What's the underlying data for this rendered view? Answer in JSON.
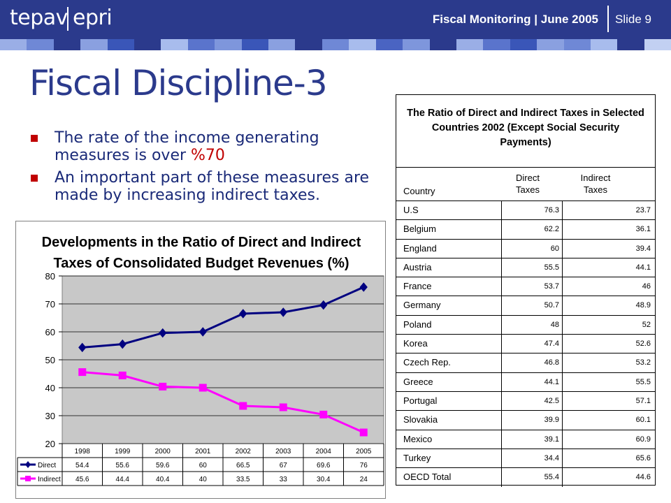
{
  "header": {
    "logo_left": "tepav",
    "logo_right": "epri",
    "title": "Fiscal Monitoring | June 2005",
    "slide_label": "Slide 9",
    "colors": {
      "bar": "#2b3a8c"
    }
  },
  "slide": {
    "title": "Fiscal Discipline-3",
    "bullets": [
      {
        "text": "The rate of the income generating measures is over ",
        "highlight": "%70"
      },
      {
        "text": "An important part of these measures are made by increasing indirect taxes.",
        "highlight": ""
      }
    ]
  },
  "table": {
    "title": "The Ratio of Direct and Indirect Taxes in Selected Countries 2002 (Except Social Security Payments)",
    "headers": {
      "country": "Country",
      "direct_1": "Direct",
      "direct_2": "Taxes",
      "indirect_1": "Indirect",
      "indirect_2": "Taxes"
    },
    "rows": [
      {
        "country": "U.S",
        "direct": "76.3",
        "indirect": "23.7"
      },
      {
        "country": "Belgium",
        "direct": "62.2",
        "indirect": "36.1"
      },
      {
        "country": "England",
        "direct": "60",
        "indirect": "39.4"
      },
      {
        "country": "Austria",
        "direct": "55.5",
        "indirect": "44.1"
      },
      {
        "country": "France",
        "direct": "53.7",
        "indirect": "46"
      },
      {
        "country": "Germany",
        "direct": "50.7",
        "indirect": "48.9"
      },
      {
        "country": "Poland",
        "direct": "48",
        "indirect": "52"
      },
      {
        "country": "Korea",
        "direct": "47.4",
        "indirect": "52.6"
      },
      {
        "country": "Czech Rep.",
        "direct": "46.8",
        "indirect": "53.2"
      },
      {
        "country": "Greece",
        "direct": "44.1",
        "indirect": "55.5"
      },
      {
        "country": "Portugal",
        "direct": "42.5",
        "indirect": "57.1"
      },
      {
        "country": "Slovakia",
        "direct": "39.9",
        "indirect": "60.1"
      },
      {
        "country": "Mexico",
        "direct": "39.1",
        "indirect": "60.9"
      },
      {
        "country": "Turkey",
        "direct": "34.4",
        "indirect": "65.6"
      },
      {
        "country": "OECD Total",
        "direct": "55.4",
        "indirect": "44.6"
      }
    ]
  },
  "chart_data": {
    "type": "line",
    "title": "Developments in the Ratio of Direct and Indirect Taxes of Consolidated Budget Revenues (%)",
    "title_lines": [
      "Developments in the Ratio of Direct and Indirect",
      "Taxes of Consolidated Budget Revenues (%)"
    ],
    "categories": [
      "1998",
      "1999",
      "2000",
      "2001",
      "2002",
      "2003",
      "2004",
      "2005"
    ],
    "series": [
      {
        "name": "Direct",
        "values": [
          54.4,
          55.6,
          59.6,
          60,
          66.5,
          67,
          69.6,
          76
        ],
        "labels": [
          "54.4",
          "55.6",
          "59.6",
          "60",
          "66.5",
          "67",
          "69.6",
          "76"
        ],
        "color": "#000080",
        "marker": "diamond"
      },
      {
        "name": "Indirect",
        "values": [
          45.6,
          44.4,
          40.4,
          40,
          33.5,
          33,
          30.4,
          24
        ],
        "labels": [
          "45.6",
          "44.4",
          "40.4",
          "40",
          "33.5",
          "33",
          "30.4",
          "24"
        ],
        "color": "#ff00ff",
        "marker": "square"
      }
    ],
    "ylim": [
      20,
      80
    ],
    "yticks": [
      "20",
      "30",
      "40",
      "50",
      "60",
      "70",
      "80"
    ],
    "grid": true,
    "data_table": true
  }
}
